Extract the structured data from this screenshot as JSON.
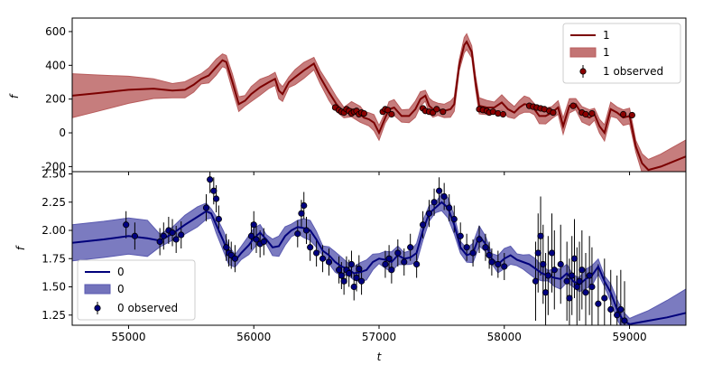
{
  "chart_data": [
    {
      "panel": "top",
      "type": "line",
      "ylabel": "f",
      "xlabel": "",
      "xlim": [
        54550,
        59450
      ],
      "ylim": [
        -230,
        680
      ],
      "yticks": [
        -200,
        0,
        200,
        400,
        600
      ],
      "xticks": [
        55000,
        56000,
        57000,
        58000,
        59000
      ],
      "legend_position": "top-right",
      "legend": [
        "1",
        "1",
        "1 observed"
      ],
      "colors": {
        "line": "#7b0000",
        "band": "#b85c5c",
        "points": "#8b0000"
      },
      "series": [
        {
          "kind": "model",
          "x": [
            54550,
            54750,
            55000,
            55200,
            55350,
            55450,
            55520,
            55580,
            55640,
            55700,
            55750,
            55780,
            55830,
            55880,
            55930,
            55980,
            56050,
            56120,
            56170,
            56200,
            56230,
            56280,
            56330,
            56400,
            56480,
            56530,
            56600,
            56660,
            56720,
            56780,
            56850,
            56880,
            56920,
            56960,
            57000,
            57050,
            57080,
            57120,
            57180,
            57240,
            57290,
            57330,
            57370,
            57400,
            57430,
            57470,
            57520,
            57570,
            57600,
            57640,
            57680,
            57700,
            57740,
            57770,
            57800,
            57860,
            57920,
            57980,
            58030,
            58080,
            58120,
            58160,
            58200,
            58240,
            58280,
            58330,
            58380,
            58430,
            58470,
            58520,
            58570,
            58620,
            58680,
            58720,
            58760,
            58800,
            58850,
            58900,
            58950,
            59000,
            59050,
            59100,
            59150,
            59250,
            59350,
            59450
          ],
          "y": [
            220,
            235,
            255,
            262,
            250,
            255,
            285,
            320,
            340,
            390,
            430,
            420,
            300,
            170,
            190,
            230,
            270,
            300,
            320,
            250,
            230,
            300,
            330,
            370,
            410,
            330,
            240,
            170,
            120,
            140,
            110,
            90,
            80,
            60,
            0,
            90,
            140,
            150,
            100,
            100,
            140,
            200,
            220,
            160,
            140,
            140,
            130,
            140,
            170,
            400,
            520,
            540,
            480,
            300,
            160,
            150,
            150,
            180,
            140,
            120,
            150,
            170,
            165,
            140,
            100,
            100,
            120,
            150,
            40,
            160,
            170,
            110,
            90,
            110,
            40,
            0,
            140,
            120,
            90,
            100,
            -80,
            -180,
            -220,
            -200,
            -170,
            -140
          ]
        },
        {
          "kind": "observed",
          "x": [
            56650,
            56680,
            56700,
            56720,
            56740,
            56760,
            56780,
            56800,
            56820,
            56840,
            56860,
            56880,
            57030,
            57050,
            57070,
            57100,
            57350,
            57370,
            57400,
            57430,
            57460,
            57510,
            57800,
            57830,
            57860,
            57880,
            57910,
            57950,
            57990,
            58200,
            58230,
            58260,
            58290,
            58320,
            58360,
            58390,
            58550,
            58620,
            58650,
            58700,
            58950,
            59020
          ],
          "y": [
            150,
            135,
            125,
            120,
            140,
            130,
            115,
            125,
            130,
            110,
            120,
            115,
            125,
            140,
            135,
            110,
            145,
            130,
            125,
            120,
            140,
            125,
            140,
            135,
            130,
            120,
            125,
            115,
            110,
            160,
            155,
            150,
            145,
            140,
            130,
            120,
            160,
            120,
            110,
            115,
            110,
            105
          ]
        }
      ]
    },
    {
      "panel": "bottom",
      "type": "line",
      "ylabel": "f",
      "xlabel": "t",
      "xlim": [
        54550,
        59450
      ],
      "ylim": [
        1.16,
        2.52
      ],
      "yticks": [
        1.25,
        1.5,
        1.75,
        2.0,
        2.25,
        2.5
      ],
      "ytick_labels": [
        "1.25",
        "1.50",
        "1.75",
        "2.00",
        "2.25",
        "2.50"
      ],
      "xticks": [
        55000,
        56000,
        57000,
        58000,
        59000
      ],
      "legend_position": "bottom-left",
      "legend": [
        "0",
        "0",
        "0 observed"
      ],
      "colors": {
        "line": "#00007b",
        "band": "#5a5ab0",
        "points": "#000080"
      },
      "series": [
        {
          "kind": "model",
          "x": [
            54550,
            54800,
            55000,
            55150,
            55250,
            55350,
            55450,
            55550,
            55620,
            55660,
            55700,
            55760,
            55800,
            55850,
            55900,
            55960,
            56000,
            56050,
            56100,
            56150,
            56200,
            56250,
            56300,
            56350,
            56400,
            56450,
            56500,
            56550,
            56600,
            56650,
            56700,
            56750,
            56800,
            56850,
            56900,
            56950,
            57000,
            57050,
            57100,
            57150,
            57200,
            57250,
            57300,
            57350,
            57400,
            57450,
            57500,
            57550,
            57600,
            57650,
            57700,
            57750,
            57800,
            57850,
            57900,
            57950,
            58000,
            58050,
            58100,
            58150,
            58200,
            58250,
            58300,
            58350,
            58400,
            58450,
            58500,
            58550,
            58600,
            58650,
            58700,
            58750,
            58800,
            58850,
            58900,
            58950,
            59000,
            59050,
            59150,
            59300,
            59450
          ],
          "y": [
            1.89,
            1.92,
            1.95,
            1.93,
            1.91,
            1.97,
            2.05,
            2.12,
            2.17,
            2.15,
            2.05,
            1.9,
            1.78,
            1.73,
            1.8,
            1.87,
            1.93,
            1.98,
            1.92,
            1.85,
            1.86,
            1.95,
            2.0,
            2.03,
            2.02,
            2.0,
            1.92,
            1.82,
            1.78,
            1.72,
            1.68,
            1.66,
            1.62,
            1.63,
            1.65,
            1.72,
            1.75,
            1.74,
            1.72,
            1.78,
            1.75,
            1.76,
            1.8,
            2.0,
            2.15,
            2.2,
            2.25,
            2.2,
            2.05,
            1.85,
            1.78,
            1.8,
            1.95,
            1.88,
            1.75,
            1.7,
            1.75,
            1.78,
            1.74,
            1.72,
            1.7,
            1.66,
            1.62,
            1.6,
            1.58,
            1.57,
            1.62,
            1.55,
            1.52,
            1.57,
            1.6,
            1.68,
            1.55,
            1.45,
            1.3,
            1.2,
            1.17,
            1.18,
            1.2,
            1.23,
            1.27
          ]
        },
        {
          "kind": "observed",
          "x": [
            54980,
            55050,
            55250,
            55280,
            55320,
            55350,
            55380,
            55420,
            55620,
            55650,
            55680,
            55700,
            55720,
            55780,
            55800,
            55820,
            55850,
            55980,
            56000,
            56020,
            56050,
            56080,
            56350,
            56380,
            56400,
            56420,
            56450,
            56500,
            56550,
            56600,
            56680,
            56700,
            56720,
            56740,
            56760,
            56780,
            56800,
            56820,
            56840,
            56860,
            57050,
            57080,
            57100,
            57150,
            57200,
            57250,
            57300,
            57350,
            57400,
            57440,
            57480,
            57520,
            57560,
            57600,
            57650,
            57700,
            57750,
            57800,
            57850,
            57880,
            57900,
            57950,
            58000,
            58250,
            58270,
            58290,
            58310,
            58330,
            58350,
            58380,
            58400,
            58450,
            58500,
            58520,
            58540,
            58560,
            58580,
            58600,
            58620,
            58650,
            58680,
            58700,
            58750,
            58800,
            58850,
            58900,
            58930,
            58960
          ],
          "y": [
            2.05,
            1.95,
            1.9,
            1.95,
            2.0,
            1.98,
            1.92,
            1.96,
            2.2,
            2.45,
            2.35,
            2.28,
            2.1,
            1.85,
            1.8,
            1.78,
            1.75,
            1.95,
            2.05,
            1.92,
            1.88,
            1.9,
            1.97,
            2.15,
            2.22,
            2.0,
            1.85,
            1.8,
            1.75,
            1.72,
            1.65,
            1.6,
            1.55,
            1.65,
            1.62,
            1.7,
            1.5,
            1.58,
            1.66,
            1.55,
            1.7,
            1.75,
            1.65,
            1.8,
            1.72,
            1.85,
            1.7,
            2.05,
            2.15,
            2.25,
            2.35,
            2.3,
            2.2,
            2.1,
            1.95,
            1.85,
            1.8,
            1.92,
            1.85,
            1.78,
            1.72,
            1.7,
            1.68,
            1.55,
            1.8,
            1.95,
            1.7,
            1.45,
            1.6,
            1.8,
            1.65,
            1.7,
            1.55,
            1.4,
            1.6,
            1.75,
            1.5,
            1.55,
            1.65,
            1.45,
            1.6,
            1.5,
            1.35,
            1.4,
            1.3,
            1.25,
            1.3,
            1.2
          ]
        }
      ]
    }
  ]
}
